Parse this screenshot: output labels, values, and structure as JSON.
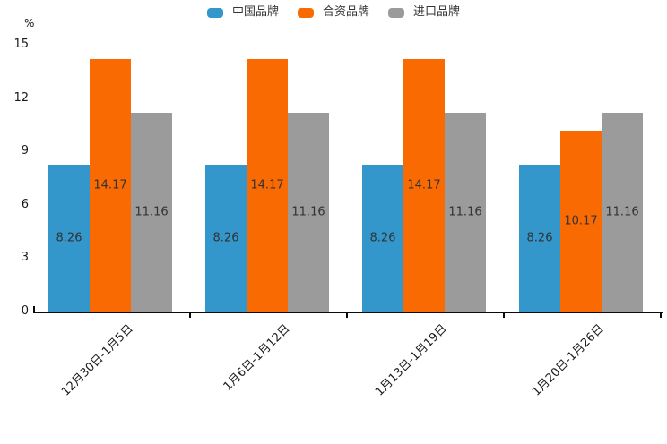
{
  "chart_data": {
    "type": "bar",
    "title": "",
    "ylabel": "%",
    "categories": [
      "12月30日-1月5日",
      "1月6日-1月12日",
      "1月13日-1月19日",
      "1月20日-1月26日"
    ],
    "series": [
      {
        "name": "中国品牌",
        "color": "#3497CB",
        "values": [
          8.26,
          8.26,
          8.26,
          8.26
        ]
      },
      {
        "name": "合资品牌",
        "color": "#FA6A02",
        "values": [
          14.17,
          14.17,
          14.17,
          10.17
        ]
      },
      {
        "name": "进口品牌",
        "color": "#9B9B9B",
        "values": [
          11.16,
          11.16,
          11.16,
          11.16
        ]
      }
    ],
    "y_ticks": [
      15,
      12,
      9,
      6,
      3,
      0
    ],
    "ylim": [
      0,
      15
    ],
    "grid": false,
    "legend_position": "top-center",
    "value_label_position": "inside-center"
  }
}
